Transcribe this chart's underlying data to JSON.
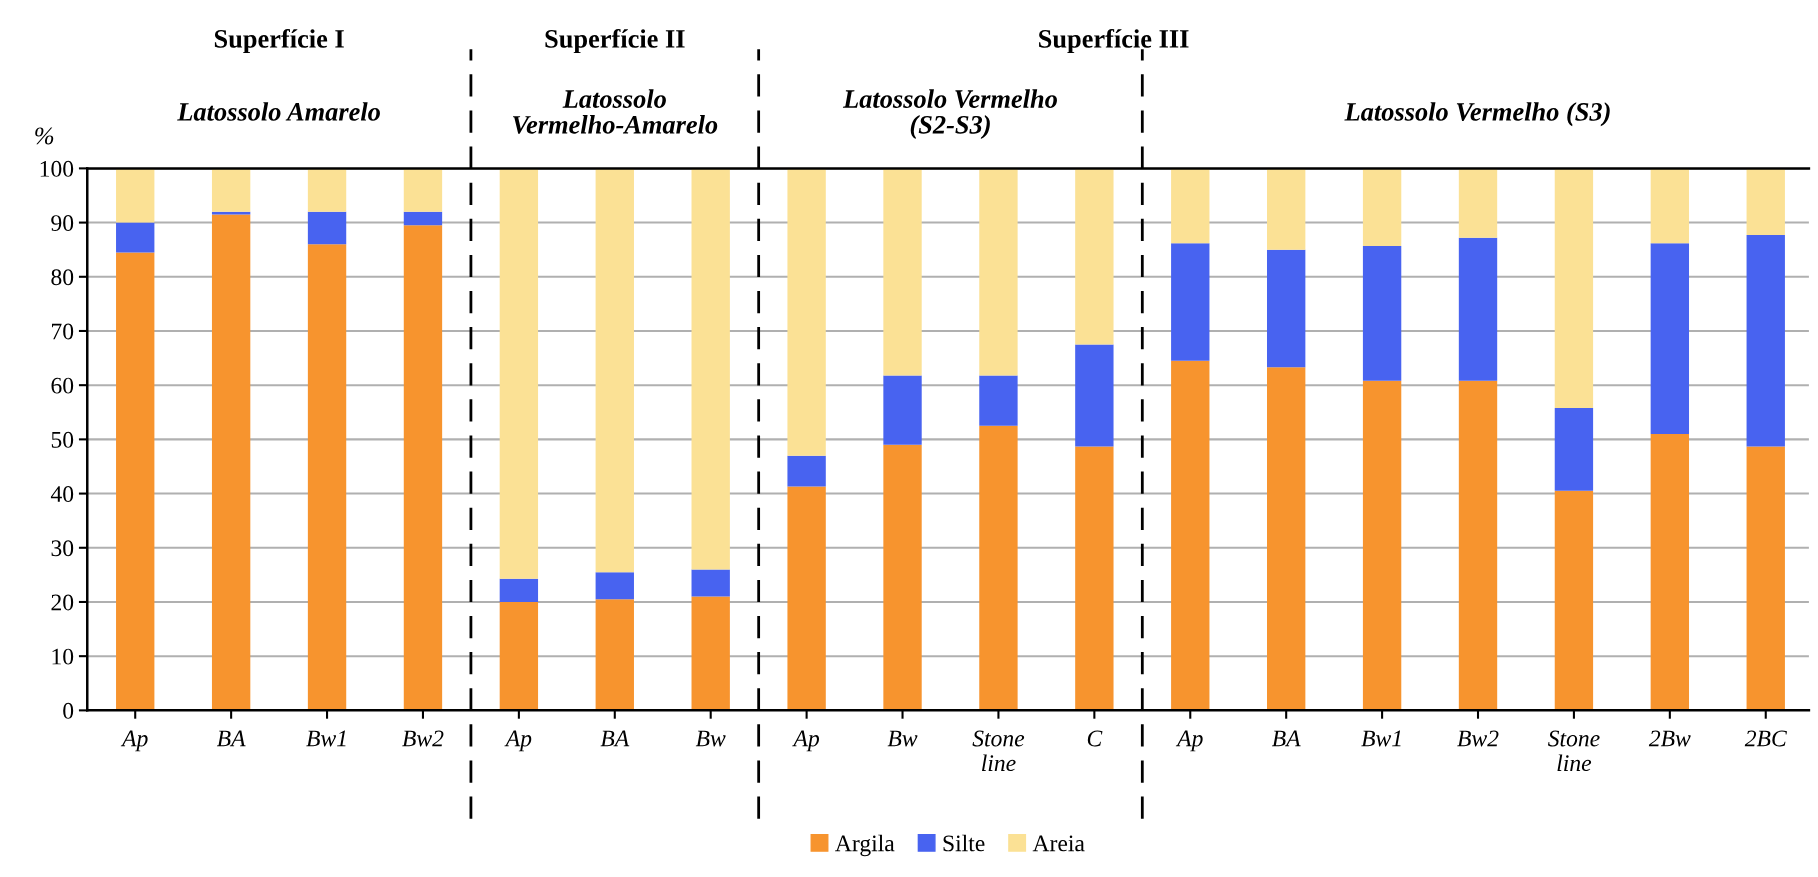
{
  "chart_data": {
    "type": "bar",
    "stacked": true,
    "ylabel": "%",
    "categories": [
      "Ap",
      "BA",
      "Bw1",
      "Bw2",
      "Ap",
      "BA",
      "Bw",
      "Ap",
      "Bw",
      "Stone\nline",
      "C",
      "Ap",
      "BA",
      "Bw1",
      "Bw2",
      "Stone\nline",
      "2Bw",
      "2BC"
    ],
    "series": [
      {
        "name": "Argila",
        "color": "#f7942e",
        "values": [
          84.5,
          91.5,
          86,
          89.5,
          20,
          20.5,
          21,
          41.3,
          49,
          52.5,
          48.7,
          64.5,
          63.3,
          60.8,
          60.8,
          40.5,
          51,
          48.7
        ]
      },
      {
        "name": "Silte",
        "color": "#4863f0",
        "values": [
          5.5,
          0.5,
          6,
          2.5,
          4.3,
          5,
          5,
          5.7,
          12.8,
          9.3,
          18.8,
          21.7,
          21.7,
          24.9,
          26.4,
          15.3,
          35.2,
          39
        ]
      },
      {
        "name": "Areia",
        "color": "#fbe195",
        "values": [
          10,
          8,
          8,
          8,
          75.7,
          74.5,
          74,
          53,
          38.2,
          38.2,
          32.5,
          13.8,
          15,
          14.3,
          12.8,
          44.2,
          13.8,
          12.3
        ]
      }
    ],
    "ylim": [
      0,
      100
    ],
    "yticks": [
      0,
      10,
      20,
      30,
      40,
      50,
      60,
      70,
      80,
      90,
      100
    ],
    "grid": "y",
    "legend": "bottom",
    "annotations": [
      "Superfície I",
      "Superfície II",
      "Superfície III",
      "Latossolo Amarelo",
      "Latossolo\nVermelho-Amarelo",
      "Latossolo Vermelho\n(S2-S3)",
      "Latossolo Vermelho (S3)"
    ]
  }
}
